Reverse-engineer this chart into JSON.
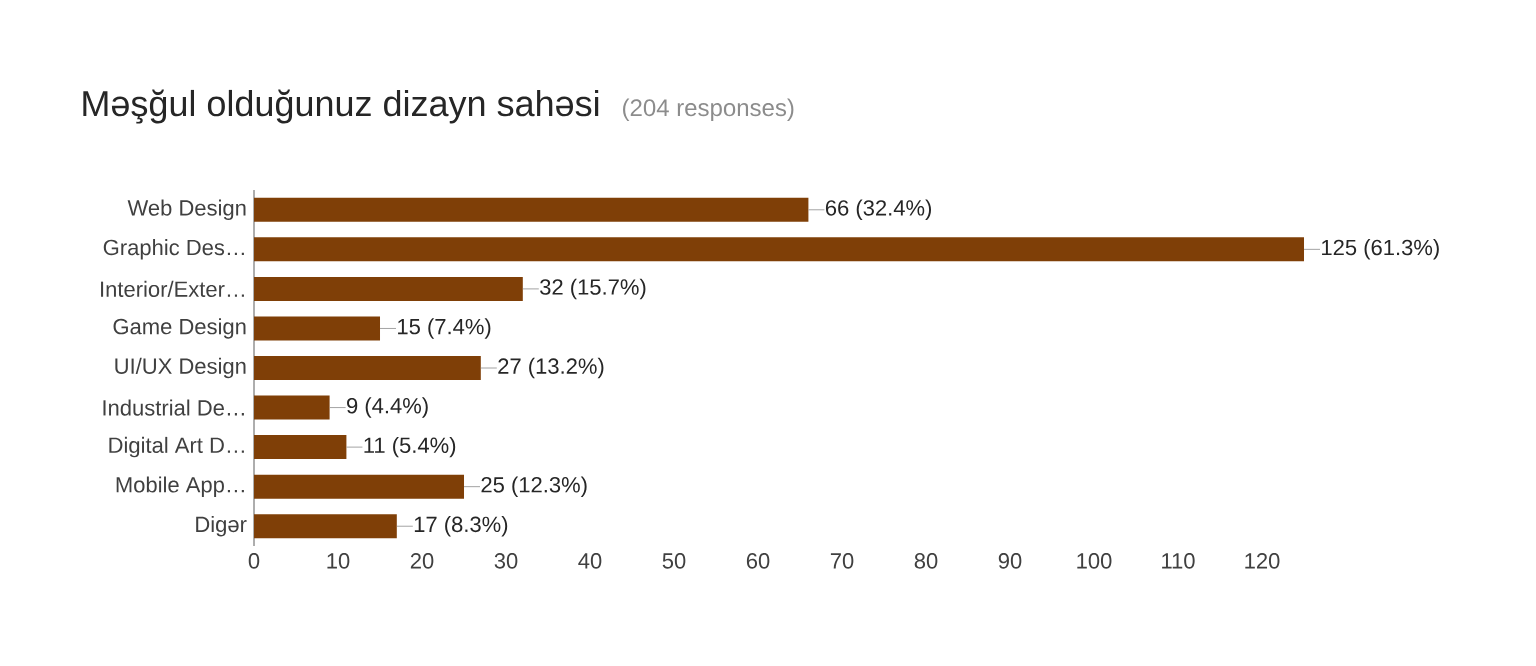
{
  "chart_data": {
    "type": "bar",
    "orientation": "horizontal",
    "title": "Məşğul olduğunuz dizayn sahəsi",
    "subtitle": "(204 responses)",
    "categories": [
      "Web Design",
      "Graphic Des…",
      "Interior/Exter…",
      "Game Design",
      "UI/UX Design",
      "Industrial De…",
      "Digital Art D…",
      "Mobile App…",
      "Digər"
    ],
    "values": [
      66,
      125,
      32,
      15,
      27,
      9,
      11,
      25,
      17
    ],
    "value_labels": [
      "66 (32.4%)",
      "125 (61.3%)",
      "32 (15.7%)",
      "15 (7.4%)",
      "27 (13.2%)",
      "9 (4.4%)",
      "11 (5.4%)",
      "25 (12.3%)",
      "17 (8.3%)"
    ],
    "color": "#7f3f07",
    "xlim": [
      0,
      125
    ],
    "xticks": [
      0,
      10,
      20,
      30,
      40,
      50,
      60,
      70,
      80,
      90,
      100,
      110,
      120
    ],
    "grid": false
  }
}
